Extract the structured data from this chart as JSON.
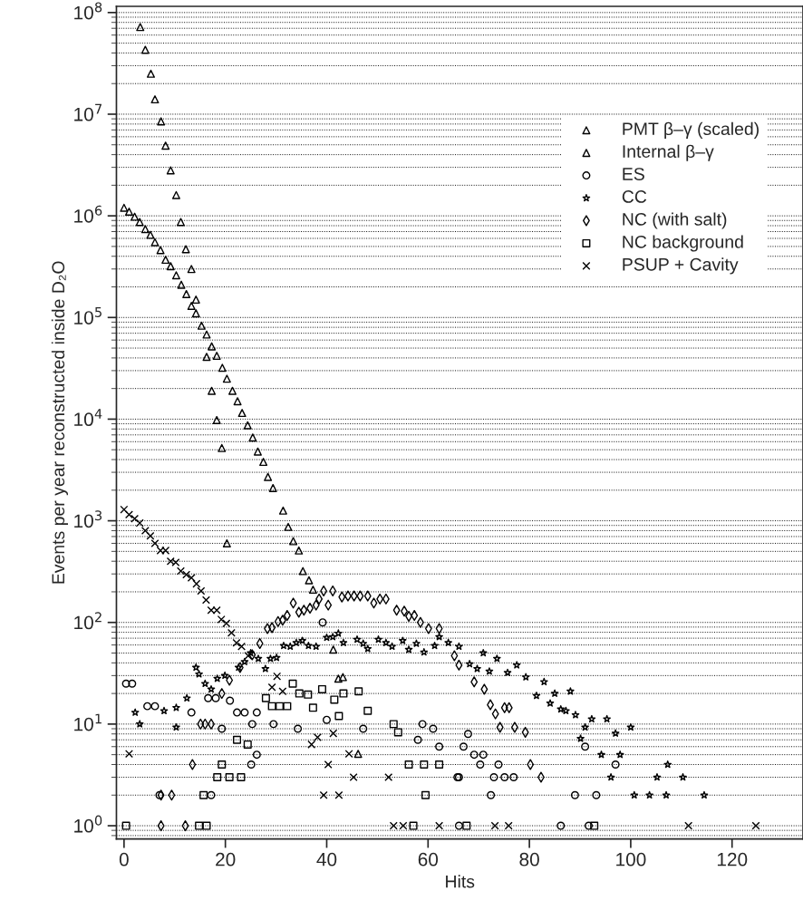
{
  "chart_data": {
    "type": "scatter",
    "xlabel": "Hits",
    "ylabel": "Events per year reconstructed inside D₂O",
    "log": "y",
    "grid": "y",
    "legend": "top right",
    "xlim": [
      -1.5,
      134
    ],
    "xticks": [
      0,
      20,
      40,
      60,
      80,
      100,
      120
    ],
    "ylim": [
      0.74,
      115000000.0
    ],
    "yticks": [
      {
        "value": 1,
        "label": "10$^{0}$"
      },
      {
        "value": 10,
        "label": "10$^{1}$"
      },
      {
        "value": 100,
        "label": "10$^{2}$"
      },
      {
        "value": 1000,
        "label": "10$^{3}$"
      },
      {
        "value": 10000,
        "label": "10$^{4}$"
      },
      {
        "value": 100000,
        "label": "10$^{5}$"
      },
      {
        "value": 1000000,
        "label": "10$^{6}$"
      },
      {
        "value": 10000000,
        "label": "10$^{7}$"
      },
      {
        "value": 100000000,
        "label": "10$^{8}$"
      }
    ],
    "series": [
      {
        "name": "PMT β–γ (scaled)",
        "color": "#000000",
        "marker": "triangle",
        "x": [
          3.2,
          4.2,
          5.3,
          6.1,
          7.3,
          8.2,
          9.2,
          10.3,
          11.2,
          12.2,
          13.3,
          14.2,
          15.3,
          16.3,
          17.3,
          18.3,
          19.3,
          20.3,
          42.3,
          43.2
        ],
        "values": [
          72000000.0,
          43000000.0,
          25000000.0,
          14000000.0,
          8500000.0,
          4900000.0,
          2800000.0,
          1600000.0,
          870000.0,
          470000.0,
          300000.0,
          150000.0,
          83000.0,
          41000.0,
          19000.0,
          9800,
          5200,
          600,
          28,
          29
        ]
      },
      {
        "name": "Internal β–γ",
        "color": "#000000",
        "marker": "triangle",
        "x": [
          0,
          1,
          2.1,
          3.1,
          4.2,
          5.2,
          6.1,
          7.2,
          8.2,
          9.2,
          10.3,
          11.3,
          12.3,
          13.3,
          14.2,
          16.3,
          17.3,
          18.3,
          19.4,
          20.3,
          21.4,
          22.4,
          23.3,
          24.4,
          25.4,
          26.4,
          27.5,
          28.4,
          29.4,
          31.4,
          32.4,
          33.4,
          34.5,
          35.3,
          36.5,
          37.3,
          41.3,
          46.2
        ],
        "values": [
          1200000.0,
          1100000.0,
          980000.0,
          870000.0,
          740000.0,
          650000.0,
          550000.0,
          460000.0,
          370000.0,
          320000.0,
          260000.0,
          210000.0,
          170000.0,
          130000.0,
          110000.0,
          68000.0,
          52000.0,
          42000.0,
          32000.0,
          25000.0,
          19000.0,
          15000.0,
          11500.0,
          8700,
          6600,
          4800,
          3800,
          2700,
          2100,
          1260,
          870,
          630,
          510,
          320,
          260,
          210,
          54,
          5.1
        ]
      },
      {
        "name": "ES",
        "color": "#000000",
        "marker": "circle",
        "x": [
          0.4,
          1.6,
          4.6,
          6.1,
          7,
          13.3,
          16.6,
          17.2,
          18.1,
          19.3,
          20.9,
          22.3,
          23.8,
          25.1,
          25.3,
          26.2,
          26.2,
          29.5,
          34.3,
          39.2,
          40,
          47.2,
          58,
          58.9,
          61,
          62.2,
          65.8,
          66.1,
          66.1,
          67,
          67.9,
          69.1,
          70.3,
          70.9,
          72.4,
          73,
          73.9,
          75.1,
          76.9,
          86.2,
          89,
          91,
          91.7,
          93.2,
          97
        ],
        "values": [
          25,
          25,
          15,
          15,
          2,
          13,
          18,
          2,
          18,
          9,
          17,
          13,
          13,
          4,
          10,
          13,
          5,
          10,
          9,
          100,
          11,
          9,
          7,
          10,
          9,
          6,
          3,
          3,
          1,
          6,
          8,
          5,
          4,
          5,
          2,
          3,
          4,
          3,
          3,
          1,
          2,
          6,
          1,
          2,
          4
        ]
      },
      {
        "name": "CC",
        "color": "#000000",
        "marker": "star",
        "x": [
          2.2,
          3.1,
          7.9,
          10.3,
          10.3,
          12.4,
          14.2,
          14.8,
          16,
          17.2,
          18.4,
          19.9,
          22.6,
          23.8,
          25,
          26.5,
          27.9,
          28.9,
          30.1,
          31.5,
          32.8,
          34,
          35.2,
          36.4,
          37.9,
          40,
          41.2,
          42.3,
          43.3,
          46,
          47.2,
          48.1,
          50.2,
          51.7,
          52.9,
          55,
          56.2,
          57.7,
          59.2,
          61.3,
          62.2,
          64,
          66.1,
          68.2,
          69.7,
          70.9,
          72.1,
          73.6,
          75.7,
          77.5,
          79.3,
          81.4,
          82.9,
          84.1,
          85,
          86.2,
          87.2,
          88.1,
          89.1,
          90.1,
          91,
          92.3,
          94.2,
          95.3,
          96.1,
          97,
          97.9,
          100,
          100.7,
          103.7,
          105.2,
          107,
          107.3,
          110.3,
          114.5
        ],
        "values": [
          13,
          10,
          13.5,
          14.5,
          9.3,
          18,
          36,
          31,
          25,
          22,
          28,
          30,
          36,
          41,
          50,
          44,
          35,
          44,
          45,
          59,
          58,
          63,
          66,
          59,
          58,
          71,
          72,
          78,
          63,
          68,
          62,
          55,
          68,
          63,
          58,
          66,
          54,
          62,
          51,
          59,
          72,
          63,
          58,
          39,
          35,
          50,
          33,
          44,
          32,
          38,
          29,
          19,
          26,
          16,
          20,
          14,
          13.5,
          21,
          12.3,
          7.2,
          9.3,
          11.2,
          5,
          11.2,
          3,
          8.1,
          5,
          9.3,
          2,
          2,
          3,
          2,
          4,
          3,
          2
        ]
      },
      {
        "name": "NC (with salt)",
        "color": "#000000",
        "marker": "diamond",
        "x": [
          7.3,
          7.3,
          9.4,
          12.1,
          13.5,
          15.1,
          16,
          17.2,
          19.3,
          20.8,
          22.9,
          25.3,
          26.8,
          28.3,
          29.2,
          30.4,
          31.3,
          32.2,
          33.4,
          34.5,
          35.5,
          36.7,
          37.9,
          38.5,
          39.4,
          40.3,
          41.2,
          43,
          44.2,
          45.4,
          46.6,
          48.1,
          49.3,
          50.5,
          51.7,
          53.8,
          55.3,
          56.2,
          57.3,
          58.5,
          60.1,
          62.2,
          65.2,
          66.1,
          69.1,
          71.1,
          72.3,
          73.3,
          74.2,
          75.1,
          76,
          77.1,
          79.2,
          80.2,
          82.3
        ],
        "values": [
          2,
          1,
          2,
          1,
          4,
          10,
          10,
          10,
          20,
          27,
          36,
          48,
          62,
          87,
          89,
          102,
          105,
          117,
          155,
          126,
          132,
          138,
          148,
          170,
          204,
          148,
          204,
          178,
          182,
          182,
          182,
          182,
          155,
          170,
          170,
          132,
          129,
          115,
          117,
          100,
          87,
          87,
          47,
          38,
          26,
          22,
          15.5,
          12.6,
          9.3,
          14.5,
          14.5,
          9.3,
          8.3,
          4,
          3
        ]
      },
      {
        "name": "NC background",
        "color": "#000000",
        "marker": "square",
        "x": [
          0.4,
          14.8,
          15.7,
          16.3,
          18.4,
          19.3,
          20.8,
          22.3,
          23.1,
          24.4,
          28,
          29.2,
          30.7,
          32.2,
          33.3,
          34.6,
          36.3,
          37.3,
          39.1,
          41.5,
          42.4,
          43.3,
          46.3,
          48.1,
          53.2,
          54.1,
          56.2,
          57.1,
          59.2,
          59.5,
          62.2,
          67.6,
          92.8
        ],
        "values": [
          1,
          1,
          2,
          1,
          3,
          4,
          3,
          7,
          3,
          6.3,
          18,
          15,
          15,
          15,
          25,
          20,
          19.5,
          14.5,
          22,
          17.4,
          12,
          20,
          21,
          13.5,
          10,
          8.3,
          4,
          1,
          4,
          2,
          4,
          1,
          1
        ]
      },
      {
        "name": "PSUP + Cavity",
        "color": "#000000",
        "marker": "cross",
        "x": [
          0,
          1,
          1,
          2.1,
          3.1,
          4.2,
          5.2,
          6.1,
          7.2,
          8.2,
          9.2,
          10.2,
          11.2,
          12.3,
          13.3,
          14.3,
          15.2,
          16.2,
          17.2,
          18.3,
          19.2,
          20.2,
          21.2,
          22.2,
          23.2,
          24.5,
          27.4,
          29.2,
          30.2,
          31.3,
          37,
          38.2,
          39.4,
          40.3,
          41.3,
          42.4,
          44.4,
          45.3,
          52.2,
          53.2,
          55.1,
          62.2,
          73.2,
          75.9,
          111.4,
          124.7
        ],
        "values": [
          1290,
          1150,
          5.1,
          1050,
          950,
          800,
          710,
          600,
          510,
          510,
          400,
          390,
          320,
          295,
          275,
          240,
          204,
          166,
          132,
          132,
          107,
          98,
          79,
          63,
          58,
          47,
          null,
          23,
          29.5,
          21,
          6.3,
          7.4,
          2,
          4,
          8.1,
          2,
          5.1,
          3,
          3,
          1,
          1,
          1,
          1,
          1,
          1,
          1
        ]
      }
    ]
  }
}
